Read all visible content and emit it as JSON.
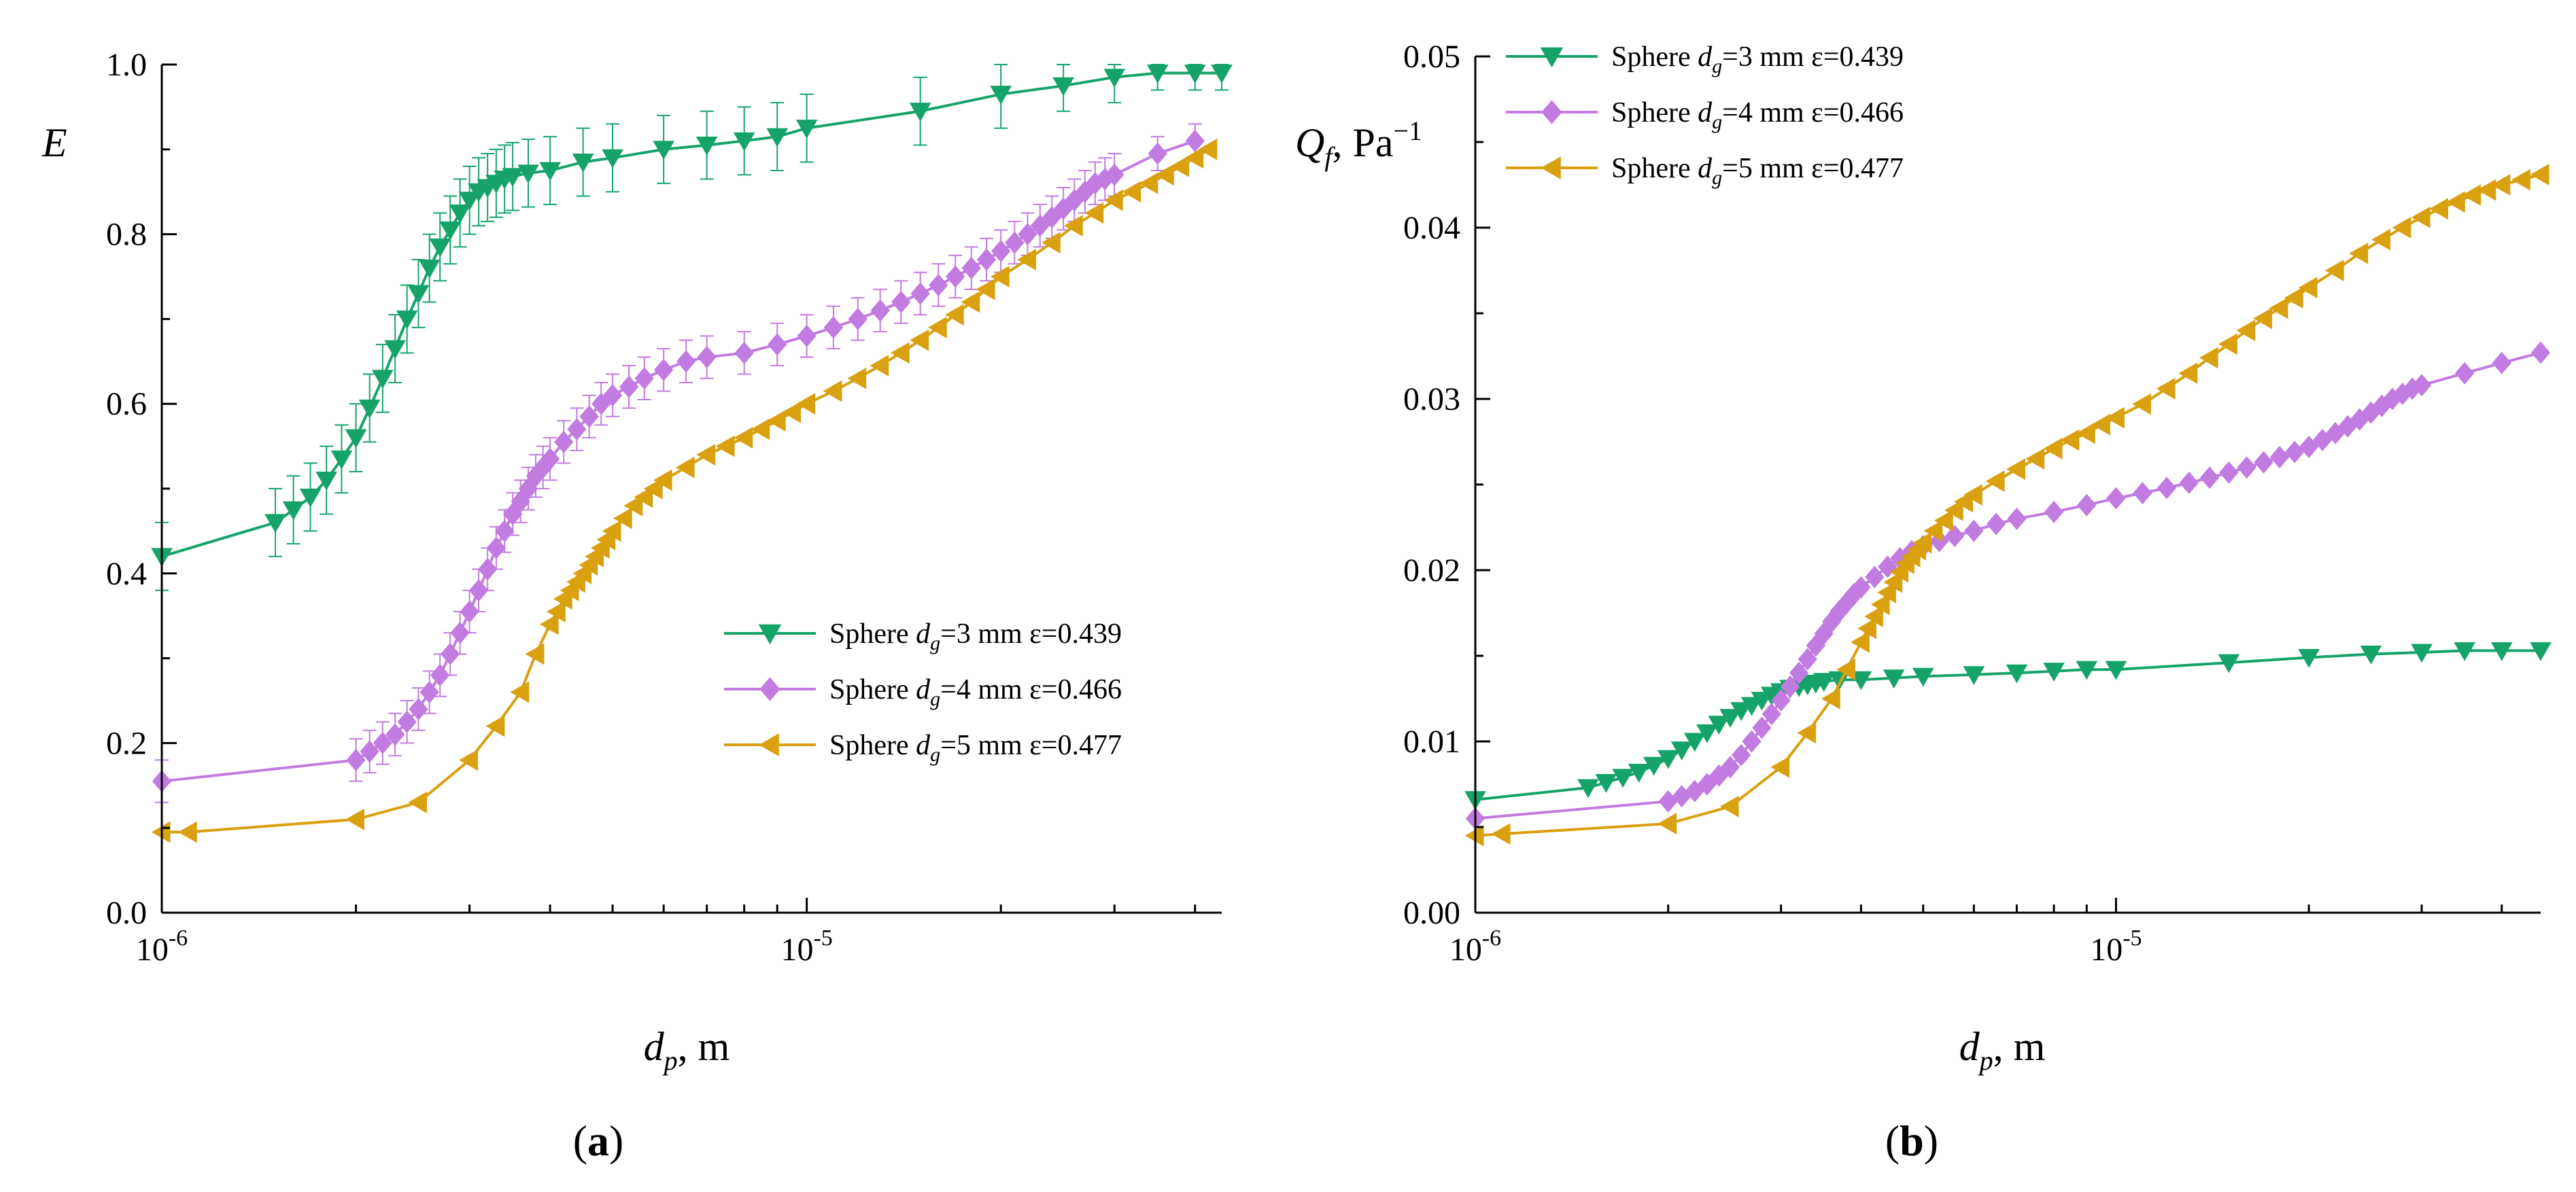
{
  "panels": [
    {
      "id": "a",
      "label_open": "(",
      "label_letter": "a",
      "label_close": ")",
      "ylabel_main": "E",
      "ylabel_rest": "",
      "xlabel_main": "d",
      "xlabel_sub": "p",
      "xlabel_rest": ", m",
      "legend_position": "center-right",
      "x_ticks": [
        {
          "base": "10",
          "exp": "-6"
        },
        {
          "base": "10",
          "exp": "-5"
        }
      ],
      "y_tick_labels": [
        "0.0",
        "0.2",
        "0.4",
        "0.6",
        "0.8",
        "1.0"
      ]
    },
    {
      "id": "b",
      "label_open": "(",
      "label_letter": "b",
      "label_close": ")",
      "ylabel_main": "Q",
      "ylabel_sub": "f",
      "ylabel_rest": ", Pa",
      "ylabel_sup": "−1",
      "xlabel_main": "d",
      "xlabel_sub": "p",
      "xlabel_rest": ", m",
      "legend_position": "top-left",
      "x_ticks": [
        {
          "base": "10",
          "exp": "-6"
        },
        {
          "base": "10",
          "exp": "-5"
        }
      ],
      "y_tick_labels": [
        "0.00",
        "0.01",
        "0.02",
        "0.03",
        "0.04",
        "0.05"
      ]
    }
  ],
  "legend_entries": [
    {
      "prefix": "Sphere ",
      "var": "d",
      "sub": "g",
      "suffix": "=3 mm ε=0.439",
      "color": "#16A36A",
      "marker": "triangle-down"
    },
    {
      "prefix": "Sphere ",
      "var": "d",
      "sub": "g",
      "suffix": "=4 mm ε=0.466",
      "color": "#C27BE0",
      "marker": "diamond"
    },
    {
      "prefix": "Sphere ",
      "var": "d",
      "sub": "g",
      "suffix": "=5 mm ε=0.477",
      "color": "#D9A00F",
      "marker": "triangle-left"
    }
  ],
  "chart_data": [
    {
      "type": "line",
      "xscale": "log",
      "xlim": [
        1e-06,
        4.4e-05
      ],
      "ylim": [
        0,
        1.0
      ],
      "grid": false,
      "series": [
        {
          "x": [
            1e-06,
            1.5e-06,
            1.6e-06,
            1.7e-06,
            1.8e-06,
            1.9e-06,
            2e-06,
            2.1e-06,
            2.2e-06,
            2.3e-06,
            2.4e-06,
            2.5e-06,
            2.6e-06,
            2.7e-06,
            2.8e-06,
            2.9e-06,
            3e-06,
            3.1e-06,
            3.2e-06,
            3.3e-06,
            3.4e-06,
            3.5e-06,
            3.7e-06,
            4e-06,
            4.5e-06,
            5e-06,
            6e-06,
            7e-06,
            8e-06,
            9e-06,
            1e-05,
            1.5e-05,
            2e-05,
            2.5e-05,
            3e-05,
            3.5e-05,
            4e-05,
            4.4e-05
          ],
          "y": [
            0.42,
            0.46,
            0.475,
            0.49,
            0.51,
            0.535,
            0.56,
            0.595,
            0.63,
            0.665,
            0.7,
            0.73,
            0.76,
            0.785,
            0.805,
            0.825,
            0.84,
            0.85,
            0.855,
            0.86,
            0.865,
            0.868,
            0.872,
            0.875,
            0.885,
            0.89,
            0.9,
            0.905,
            0.91,
            0.915,
            0.925,
            0.945,
            0.965,
            0.975,
            0.985,
            0.99,
            0.99,
            0.99
          ],
          "err": [
            0.04,
            0.04,
            0.04,
            0.04,
            0.04,
            0.04,
            0.04,
            0.04,
            0.04,
            0.04,
            0.04,
            0.04,
            0.04,
            0.04,
            0.04,
            0.04,
            0.04,
            0.04,
            0.04,
            0.04,
            0.04,
            0.04,
            0.04,
            0.04,
            0.04,
            0.04,
            0.04,
            0.04,
            0.04,
            0.04,
            0.04,
            0.04,
            0.04,
            0.03,
            0.03,
            0.02,
            0.02,
            0.02
          ]
        },
        {
          "x": [
            1e-06,
            2e-06,
            2.1e-06,
            2.2e-06,
            2.3e-06,
            2.4e-06,
            2.5e-06,
            2.6e-06,
            2.7e-06,
            2.8e-06,
            2.9e-06,
            3e-06,
            3.1e-06,
            3.2e-06,
            3.3e-06,
            3.4e-06,
            3.5e-06,
            3.6e-06,
            3.7e-06,
            3.8e-06,
            3.9e-06,
            4e-06,
            4.2e-06,
            4.4e-06,
            4.6e-06,
            4.8e-06,
            5e-06,
            5.3e-06,
            5.6e-06,
            6e-06,
            6.5e-06,
            7e-06,
            8e-06,
            9e-06,
            1e-05,
            1.1e-05,
            1.2e-05,
            1.3e-05,
            1.4e-05,
            1.5e-05,
            1.6e-05,
            1.7e-05,
            1.8e-05,
            1.9e-05,
            2e-05,
            2.1e-05,
            2.2e-05,
            2.3e-05,
            2.4e-05,
            2.5e-05,
            2.6e-05,
            2.7e-05,
            2.8e-05,
            2.9e-05,
            3e-05,
            3.5e-05,
            4e-05
          ],
          "y": [
            0.155,
            0.18,
            0.19,
            0.2,
            0.21,
            0.225,
            0.24,
            0.26,
            0.28,
            0.305,
            0.33,
            0.355,
            0.38,
            0.405,
            0.43,
            0.45,
            0.47,
            0.485,
            0.5,
            0.515,
            0.525,
            0.535,
            0.555,
            0.57,
            0.585,
            0.6,
            0.61,
            0.62,
            0.63,
            0.64,
            0.65,
            0.655,
            0.66,
            0.67,
            0.68,
            0.69,
            0.7,
            0.71,
            0.72,
            0.73,
            0.74,
            0.75,
            0.76,
            0.77,
            0.78,
            0.79,
            0.8,
            0.81,
            0.82,
            0.83,
            0.84,
            0.85,
            0.86,
            0.865,
            0.87,
            0.895,
            0.91
          ],
          "err": [
            0.025,
            0.025,
            0.025,
            0.025,
            0.025,
            0.025,
            0.025,
            0.025,
            0.025,
            0.025,
            0.025,
            0.025,
            0.025,
            0.025,
            0.025,
            0.025,
            0.025,
            0.025,
            0.025,
            0.025,
            0.025,
            0.025,
            0.025,
            0.025,
            0.025,
            0.025,
            0.025,
            0.025,
            0.025,
            0.025,
            0.025,
            0.025,
            0.025,
            0.025,
            0.025,
            0.025,
            0.025,
            0.025,
            0.025,
            0.025,
            0.025,
            0.025,
            0.025,
            0.025,
            0.025,
            0.025,
            0.025,
            0.025,
            0.025,
            0.025,
            0.025,
            0.025,
            0.025,
            0.025,
            0.025,
            0.02,
            0.02
          ]
        },
        {
          "x": [
            1e-06,
            1.1e-06,
            2e-06,
            2.5e-06,
            3e-06,
            3.3e-06,
            3.6e-06,
            3.8e-06,
            4e-06,
            4.1e-06,
            4.2e-06,
            4.3e-06,
            4.4e-06,
            4.5e-06,
            4.6e-06,
            4.7e-06,
            4.8e-06,
            4.9e-06,
            5e-06,
            5.2e-06,
            5.4e-06,
            5.6e-06,
            5.8e-06,
            6e-06,
            6.5e-06,
            7e-06,
            7.5e-06,
            8e-06,
            8.5e-06,
            9e-06,
            9.5e-06,
            1e-05,
            1.1e-05,
            1.2e-05,
            1.3e-05,
            1.4e-05,
            1.5e-05,
            1.6e-05,
            1.7e-05,
            1.8e-05,
            1.9e-05,
            2e-05,
            2.2e-05,
            2.4e-05,
            2.6e-05,
            2.8e-05,
            3e-05,
            3.2e-05,
            3.4e-05,
            3.6e-05,
            3.8e-05,
            4e-05,
            4.2e-05
          ],
          "y": [
            0.095,
            0.095,
            0.11,
            0.13,
            0.18,
            0.22,
            0.26,
            0.305,
            0.34,
            0.355,
            0.37,
            0.38,
            0.39,
            0.4,
            0.41,
            0.42,
            0.43,
            0.44,
            0.45,
            0.465,
            0.48,
            0.49,
            0.5,
            0.51,
            0.525,
            0.54,
            0.55,
            0.56,
            0.57,
            0.58,
            0.59,
            0.6,
            0.615,
            0.63,
            0.645,
            0.66,
            0.675,
            0.69,
            0.705,
            0.72,
            0.735,
            0.75,
            0.77,
            0.79,
            0.81,
            0.825,
            0.84,
            0.85,
            0.86,
            0.87,
            0.88,
            0.89,
            0.9
          ],
          "err": []
        }
      ]
    },
    {
      "type": "line",
      "xscale": "log",
      "xlim": [
        1e-06,
        4.6e-05
      ],
      "ylim": [
        0,
        0.05
      ],
      "grid": false,
      "series": [
        {
          "x": [
            1e-06,
            1.5e-06,
            1.6e-06,
            1.7e-06,
            1.8e-06,
            1.9e-06,
            2e-06,
            2.1e-06,
            2.2e-06,
            2.3e-06,
            2.4e-06,
            2.5e-06,
            2.6e-06,
            2.7e-06,
            2.8e-06,
            2.9e-06,
            3e-06,
            3.1e-06,
            3.2e-06,
            3.3e-06,
            3.4e-06,
            3.5e-06,
            3.7e-06,
            4e-06,
            4.5e-06,
            5e-06,
            6e-06,
            7e-06,
            8e-06,
            9e-06,
            1e-05,
            1.5e-05,
            2e-05,
            2.5e-05,
            3e-05,
            3.5e-05,
            4e-05,
            4.6e-05
          ],
          "y": [
            0.0066,
            0.0073,
            0.0076,
            0.0079,
            0.0082,
            0.0086,
            0.009,
            0.0095,
            0.01,
            0.0105,
            0.011,
            0.0114,
            0.0118,
            0.0121,
            0.0124,
            0.0127,
            0.0129,
            0.0131,
            0.0132,
            0.0133,
            0.0134,
            0.0135,
            0.0136,
            0.0136,
            0.0137,
            0.0138,
            0.0139,
            0.014,
            0.0141,
            0.0142,
            0.0142,
            0.0146,
            0.0149,
            0.0151,
            0.0152,
            0.0153,
            0.0153,
            0.0153
          ],
          "err": []
        },
        {
          "x": [
            1e-06,
            2e-06,
            2.1e-06,
            2.2e-06,
            2.3e-06,
            2.4e-06,
            2.5e-06,
            2.6e-06,
            2.7e-06,
            2.8e-06,
            2.9e-06,
            3e-06,
            3.1e-06,
            3.2e-06,
            3.3e-06,
            3.4e-06,
            3.5e-06,
            3.6e-06,
            3.7e-06,
            3.8e-06,
            3.9e-06,
            4e-06,
            4.2e-06,
            4.4e-06,
            4.6e-06,
            4.8e-06,
            5e-06,
            5.3e-06,
            5.6e-06,
            6e-06,
            6.5e-06,
            7e-06,
            8e-06,
            9e-06,
            1e-05,
            1.1e-05,
            1.2e-05,
            1.3e-05,
            1.4e-05,
            1.5e-05,
            1.6e-05,
            1.7e-05,
            1.8e-05,
            1.9e-05,
            2e-05,
            2.1e-05,
            2.2e-05,
            2.3e-05,
            2.4e-05,
            2.5e-05,
            2.6e-05,
            2.7e-05,
            2.8e-05,
            2.9e-05,
            3e-05,
            3.5e-05,
            4e-05,
            4.6e-05
          ],
          "y": [
            0.0055,
            0.0065,
            0.0068,
            0.0071,
            0.0075,
            0.008,
            0.0085,
            0.0092,
            0.01,
            0.0108,
            0.0116,
            0.0124,
            0.0132,
            0.014,
            0.0148,
            0.0156,
            0.0163,
            0.017,
            0.0176,
            0.0181,
            0.0186,
            0.019,
            0.0196,
            0.0202,
            0.0207,
            0.0211,
            0.0214,
            0.0217,
            0.022,
            0.0223,
            0.0227,
            0.023,
            0.0234,
            0.0238,
            0.0242,
            0.0245,
            0.0248,
            0.0251,
            0.0254,
            0.0257,
            0.026,
            0.0263,
            0.0266,
            0.0269,
            0.0272,
            0.0276,
            0.028,
            0.0284,
            0.0288,
            0.0292,
            0.0296,
            0.03,
            0.0303,
            0.0306,
            0.0308,
            0.0315,
            0.0321,
            0.0327
          ],
          "err": []
        },
        {
          "x": [
            1e-06,
            1.1e-06,
            2e-06,
            2.5e-06,
            3e-06,
            3.3e-06,
            3.6e-06,
            3.8e-06,
            4e-06,
            4.1e-06,
            4.2e-06,
            4.3e-06,
            4.4e-06,
            4.5e-06,
            4.6e-06,
            4.7e-06,
            4.8e-06,
            4.9e-06,
            5e-06,
            5.2e-06,
            5.4e-06,
            5.6e-06,
            5.8e-06,
            6e-06,
            6.5e-06,
            7e-06,
            7.5e-06,
            8e-06,
            8.5e-06,
            9e-06,
            9.5e-06,
            1e-05,
            1.1e-05,
            1.2e-05,
            1.3e-05,
            1.4e-05,
            1.5e-05,
            1.6e-05,
            1.7e-05,
            1.8e-05,
            1.9e-05,
            2e-05,
            2.2e-05,
            2.4e-05,
            2.6e-05,
            2.8e-05,
            3e-05,
            3.2e-05,
            3.4e-05,
            3.6e-05,
            3.8e-05,
            4e-05,
            4.3e-05,
            4.6e-05
          ],
          "y": [
            0.0045,
            0.0046,
            0.0052,
            0.0062,
            0.0085,
            0.0105,
            0.0125,
            0.0142,
            0.0158,
            0.0166,
            0.0173,
            0.018,
            0.0187,
            0.0193,
            0.0199,
            0.0204,
            0.0208,
            0.0212,
            0.0216,
            0.0223,
            0.0229,
            0.0235,
            0.024,
            0.0244,
            0.0252,
            0.0259,
            0.0265,
            0.0271,
            0.0276,
            0.028,
            0.0285,
            0.0289,
            0.0297,
            0.0306,
            0.0315,
            0.0324,
            0.0332,
            0.034,
            0.0347,
            0.0353,
            0.0359,
            0.0365,
            0.0375,
            0.0385,
            0.0393,
            0.04,
            0.0406,
            0.0411,
            0.0415,
            0.0419,
            0.0422,
            0.0425,
            0.0428,
            0.0431
          ],
          "err": []
        }
      ]
    }
  ]
}
